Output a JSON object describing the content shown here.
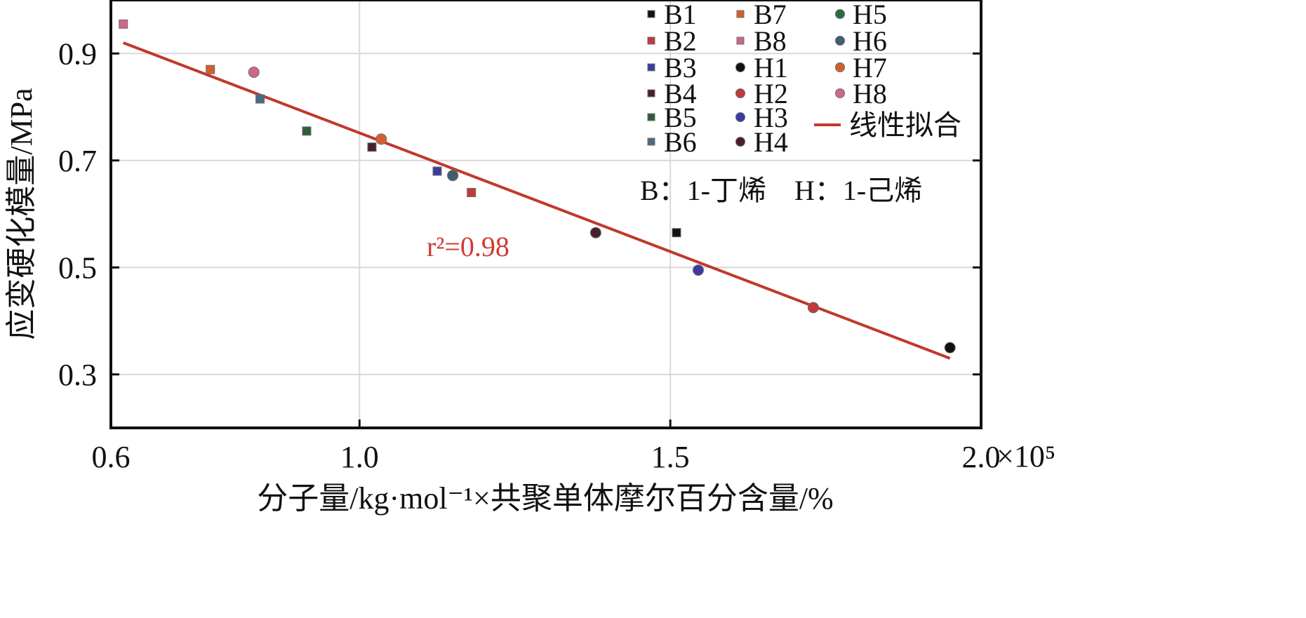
{
  "chart_data": {
    "type": "scatter",
    "xlabel": "分子量/kg·mol⁻¹×共聚单体摩尔百分含量/%",
    "ylabel": "应变硬化模量/MPa",
    "xlim": [
      0.6,
      2.0
    ],
    "ylim": [
      0.2,
      1.0
    ],
    "x_scale_factor": "×10⁵",
    "x_ticks": [
      "0.6",
      "1.0",
      "1.5",
      "2.0"
    ],
    "y_ticks": [
      "0.3",
      "0.5",
      "0.7",
      "0.9"
    ],
    "x_tick_values": [
      0.6,
      1.0,
      1.5,
      2.0
    ],
    "y_tick_values": [
      0.3,
      0.5,
      0.7,
      0.9
    ],
    "grid": true,
    "legend_position": "top-right",
    "series": [
      {
        "name": "B1",
        "marker": "square",
        "color": "#111111",
        "x": 1.51,
        "y": 0.565
      },
      {
        "name": "B2",
        "marker": "square",
        "color": "#c0393b",
        "x": 1.18,
        "y": 0.64
      },
      {
        "name": "B3",
        "marker": "square",
        "color": "#3b3c9e",
        "x": 1.125,
        "y": 0.68
      },
      {
        "name": "B4",
        "marker": "square",
        "color": "#4a1f2d",
        "x": 1.02,
        "y": 0.725
      },
      {
        "name": "B5",
        "marker": "square",
        "color": "#2d5e3c",
        "x": 0.915,
        "y": 0.755
      },
      {
        "name": "B6",
        "marker": "square",
        "color": "#4a6a85",
        "x": 0.84,
        "y": 0.815
      },
      {
        "name": "B7",
        "marker": "square",
        "color": "#d2602e",
        "x": 0.76,
        "y": 0.87
      },
      {
        "name": "B8",
        "marker": "square",
        "color": "#d0668f",
        "x": 0.62,
        "y": 0.955
      },
      {
        "name": "H1",
        "marker": "circle",
        "color": "#111111",
        "x": 1.95,
        "y": 0.35
      },
      {
        "name": "H2",
        "marker": "circle",
        "color": "#c0393b",
        "x": 1.73,
        "y": 0.425
      },
      {
        "name": "H3",
        "marker": "circle",
        "color": "#3b3c9e",
        "x": 1.545,
        "y": 0.495
      },
      {
        "name": "H4",
        "marker": "circle",
        "color": "#4a1f2d",
        "x": 1.38,
        "y": 0.565
      },
      {
        "name": "H5",
        "marker": "circle",
        "color": "#2d6b3a",
        "x": 1.15,
        "y": 0.672
      },
      {
        "name": "H6",
        "marker": "circle",
        "color": "#3d5f70",
        "x": 1.15,
        "y": 0.672
      },
      {
        "name": "H7",
        "marker": "circle",
        "color": "#d2602e",
        "x": 1.035,
        "y": 0.74
      },
      {
        "name": "H8",
        "marker": "circle",
        "color": "#d0668f",
        "x": 0.83,
        "y": 0.865
      }
    ],
    "fit_line": {
      "name": "线性拟合",
      "color": "#c0392b",
      "x": [
        0.62,
        1.95
      ],
      "y": [
        0.92,
        0.33
      ]
    },
    "annotations": {
      "r2": "r²=0.98",
      "comonomer_note": "B：1-丁烯　H：1-己烯"
    }
  }
}
